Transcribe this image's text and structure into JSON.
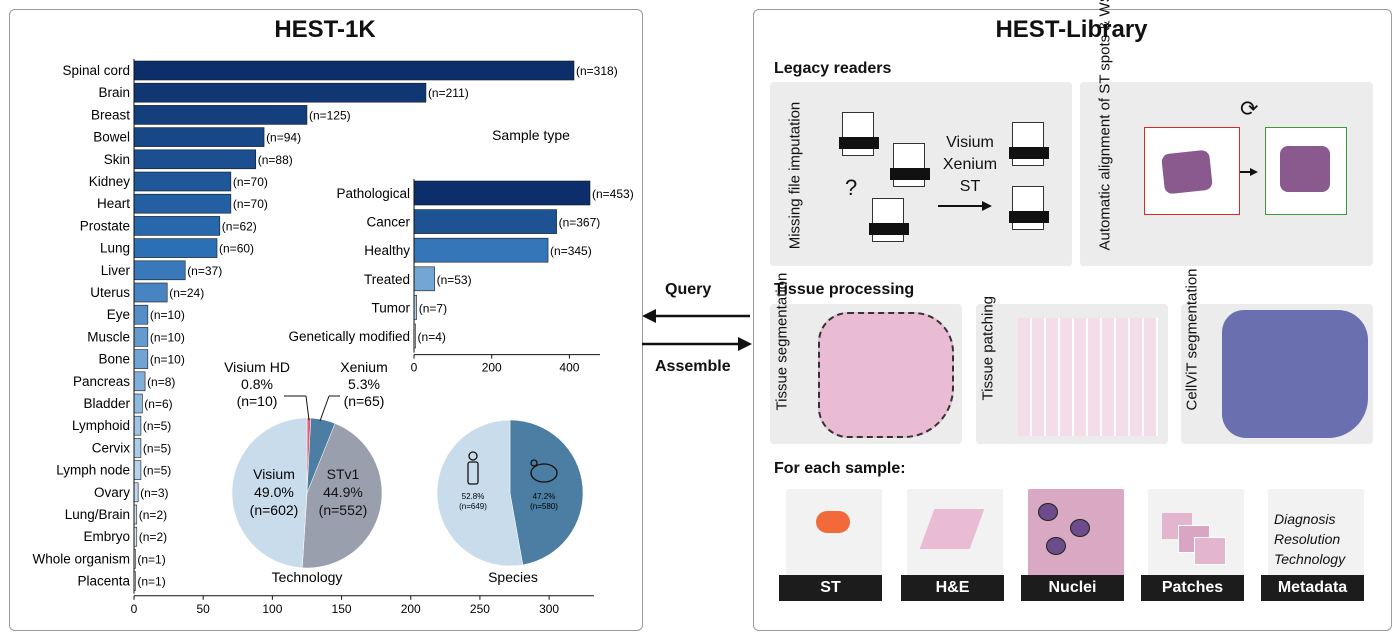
{
  "left_title": "HEST-1K",
  "right_title": "HEST-Library",
  "chart_data": [
    {
      "type": "bar",
      "orientation": "horizontal",
      "categories": [
        "Spinal cord",
        "Brain",
        "Breast",
        "Bowel",
        "Skin",
        "Kidney",
        "Heart",
        "Prostate",
        "Lung",
        "Liver",
        "Uterus",
        "Eye",
        "Muscle",
        "Bone",
        "Pancreas",
        "Bladder",
        "Lymphoid",
        "Cervix",
        "Lymph node",
        "Ovary",
        "Lung/Brain",
        "Embryo",
        "Whole organism",
        "Placenta"
      ],
      "values": [
        318,
        211,
        125,
        94,
        88,
        70,
        70,
        62,
        60,
        37,
        24,
        10,
        10,
        10,
        8,
        6,
        5,
        5,
        5,
        3,
        2,
        2,
        1,
        1
      ],
      "value_labels": [
        "(n=318)",
        "(n=211)",
        "(n=125)",
        "(n=94)",
        "(n=88)",
        "(n=70)",
        "(n=70)",
        "(n=62)",
        "(n=60)",
        "(n=37)",
        "(n=24)",
        "(n=10)",
        "(n=10)",
        "(n=10)",
        "(n=8)",
        "(n=6)",
        "(n=5)",
        "(n=5)",
        "(n=5)",
        "(n=3)",
        "(n=2)",
        "(n=2)",
        "(n=1)",
        "(n=1)"
      ],
      "xticks": [
        0,
        50,
        100,
        150,
        200,
        250,
        300
      ],
      "xlim": [
        0,
        330
      ]
    },
    {
      "type": "bar",
      "orientation": "horizontal",
      "title": "Sample type",
      "categories": [
        "Pathological",
        "Cancer",
        "Healthy",
        "Treated",
        "Tumor",
        "Genetically modified"
      ],
      "values": [
        453,
        367,
        345,
        53,
        7,
        4
      ],
      "value_labels": [
        "(n=453)",
        "(n=367)",
        "(n=345)",
        "(n=53)",
        "(n=7)",
        "(n=4)"
      ],
      "xticks": [
        0,
        200,
        400
      ],
      "xlim": [
        0,
        480
      ]
    },
    {
      "type": "pie",
      "title": "Technology",
      "slices": [
        {
          "name": "Visium",
          "pct": "49.0%",
          "count": "(n=602)",
          "value": 602,
          "color": "#c9dcec"
        },
        {
          "name": "STv1",
          "pct": "44.9%",
          "count": "(n=552)",
          "value": 552,
          "color": "#9a9fad"
        },
        {
          "name": "Xenium",
          "pct": "5.3%",
          "count": "(n=65)",
          "value": 65,
          "color": "#4b7ea2"
        },
        {
          "name": "Visium HD",
          "pct": "0.8%",
          "count": "(n=10)",
          "value": 10,
          "color": "#e0607a"
        }
      ]
    },
    {
      "type": "pie",
      "title": "Species",
      "slices": [
        {
          "pct": "52.8%",
          "count": "(n=649)",
          "value": 649,
          "color": "#c9dcec"
        },
        {
          "pct": "47.2%",
          "count": "(n=580)",
          "value": 580,
          "color": "#4b7ea2"
        }
      ]
    }
  ],
  "arrows": {
    "query": "Query",
    "assemble": "Assemble"
  },
  "legacy": {
    "title": "Legacy readers",
    "missing": "Missing file imputation",
    "question": "?",
    "formats": [
      "Visium",
      "Xenium",
      "ST"
    ],
    "alignment": "Automatic alignment of ST spots & WSI"
  },
  "tissue": {
    "title": "Tissue processing",
    "segmentation": "Tissue segmentation",
    "patching": "Tissue patching",
    "cellvit": "CellViT segmentation"
  },
  "sample": {
    "title": "For each sample:",
    "items": [
      "ST",
      "H&E",
      "Nuclei",
      "Patches",
      "Metadata"
    ],
    "metadata_lines": [
      "Diagnosis",
      "Resolution",
      "Technology"
    ]
  },
  "colors": {
    "dark": "#0c2f6b",
    "mid": "#2b6fb5",
    "light": "#9fc6e6",
    "red": "#d52a2a",
    "green": "#3a9a3a"
  }
}
